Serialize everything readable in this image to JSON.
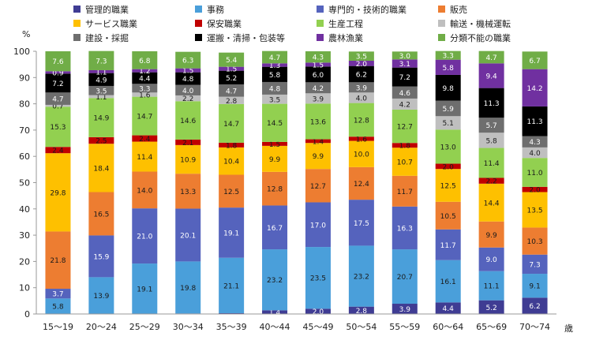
{
  "chart_data": {
    "type": "bar",
    "stacked": true,
    "ylabel": "%",
    "xunit": "歳",
    "ylim": [
      0,
      100
    ],
    "yticks": [
      0,
      10,
      20,
      30,
      40,
      50,
      60,
      70,
      80,
      90,
      100
    ],
    "grid": false,
    "legend_position": "top",
    "categories": [
      "15〜19",
      "20〜24",
      "25〜29",
      "30〜34",
      "35〜39",
      "40〜44",
      "45〜49",
      "50〜54",
      "55〜59",
      "60〜64",
      "65〜69",
      "70〜74"
    ],
    "series": [
      {
        "name": "管理的職業",
        "color": "#3f3c93",
        "label_color": "#ffffff",
        "values": [
          0.1,
          0.1,
          0.1,
          0.2,
          0.3,
          1.4,
          2.0,
          2.8,
          3.9,
          4.4,
          5.2,
          6.2
        ],
        "labels": [
          null,
          null,
          null,
          null,
          null,
          "1.4",
          "2.0",
          "2.8",
          "3.9",
          "4.4",
          "5.2",
          "6.2"
        ]
      },
      {
        "name": "事務",
        "color": "#4a9fda",
        "label_color": "#1a1a1a",
        "values": [
          5.8,
          13.9,
          19.1,
          19.8,
          21.1,
          23.2,
          23.5,
          23.2,
          20.7,
          16.1,
          11.1,
          9.1
        ],
        "labels": [
          "5.8",
          "13.9",
          "19.1",
          "19.8",
          "21.1",
          "23.2",
          "23.5",
          "23.2",
          "20.7",
          "16.1",
          "11.1",
          "9.1"
        ]
      },
      {
        "name": "専門的・技術的職業",
        "color": "#5563bd",
        "label_color": "#ffffff",
        "values": [
          3.7,
          15.9,
          21.0,
          20.1,
          19.1,
          16.7,
          17.0,
          17.5,
          16.3,
          11.7,
          9.0,
          7.3
        ],
        "labels": [
          "3.7",
          "15.9",
          "21.0",
          "20.1",
          "19.1",
          "16.7",
          "17.0",
          "17.5",
          "16.3",
          "11.7",
          "9.0",
          "7.3"
        ]
      },
      {
        "name": "販売",
        "color": "#ed7d31",
        "label_color": "#1a1a1a",
        "values": [
          21.8,
          16.5,
          14.0,
          13.3,
          12.5,
          12.8,
          12.7,
          12.4,
          11.7,
          10.5,
          9.9,
          10.3
        ],
        "labels": [
          "21.8",
          "16.5",
          "14.0",
          "13.3",
          "12.5",
          "12.8",
          "12.7",
          "12.4",
          "11.7",
          "10.5",
          "9.9",
          "10.3"
        ]
      },
      {
        "name": "サービス職業",
        "color": "#fec000",
        "label_color": "#1a1a1a",
        "values": [
          29.8,
          18.4,
          11.4,
          10.9,
          10.4,
          9.9,
          9.9,
          10.0,
          10.7,
          12.5,
          14.4,
          13.5
        ],
        "labels": [
          "29.8",
          "18.4",
          "11.4",
          "10.9",
          "10.4",
          "9.9",
          "9.9",
          "10.0",
          "10.7",
          "12.5",
          "14.4",
          "13.5"
        ]
      },
      {
        "name": "保安職業",
        "color": "#c00000",
        "label_color": "#1a1a1a",
        "values": [
          2.4,
          2.5,
          2.4,
          2.1,
          1.8,
          1.5,
          1.4,
          1.6,
          1.8,
          2.0,
          2.2,
          2.0
        ],
        "labels": [
          "2.4",
          "2.5",
          "2.4",
          "2.1",
          "1.8",
          "1.5",
          "1.4",
          "1.6",
          "1.8",
          "2.0",
          "2.2",
          "2.0"
        ]
      },
      {
        "name": "生産工程",
        "color": "#92d050",
        "label_color": "#1a1a1a",
        "values": [
          15.3,
          14.9,
          14.7,
          14.6,
          14.7,
          14.5,
          13.6,
          12.8,
          12.7,
          13.0,
          11.4,
          11.0
        ],
        "labels": [
          "15.3",
          "14.9",
          "14.7",
          "14.6",
          "14.7",
          "14.5",
          "13.6",
          "12.8",
          "12.7",
          "13.0",
          "11.4",
          "11.0"
        ]
      },
      {
        "name": "輸送・機械運転",
        "color": "#bfbfbf",
        "label_color": "#1a1a1a",
        "values": [
          0.7,
          1.1,
          1.6,
          2.2,
          2.8,
          3.5,
          3.9,
          4.0,
          4.2,
          5.1,
          5.8,
          4.0
        ],
        "labels": [
          "0.7",
          "1.1",
          "1.6",
          "2.2",
          "2.8",
          "3.5",
          "3.9",
          "4.0",
          "4.2",
          "5.1",
          "5.8",
          "4.0"
        ]
      },
      {
        "name": "建設・採掘",
        "color": "#6e6e6e",
        "label_color": "#ffffff",
        "values": [
          4.7,
          3.5,
          3.3,
          4.0,
          4.7,
          4.8,
          4.2,
          3.9,
          4.6,
          5.9,
          5.7,
          4.3
        ],
        "labels": [
          "4.7",
          "3.5",
          "3.3",
          "4.0",
          "4.7",
          "4.8",
          "4.2",
          "3.9",
          "4.6",
          "5.9",
          "5.7",
          "4.3"
        ]
      },
      {
        "name": "運搬・清掃・包装等",
        "color": "#000000",
        "label_color": "#ffffff",
        "values": [
          7.2,
          4.9,
          4.4,
          4.8,
          5.2,
          5.8,
          6.0,
          6.2,
          7.2,
          9.8,
          11.3,
          11.3
        ],
        "labels": [
          "7.2",
          "4.9",
          "4.4",
          "4.8",
          "5.2",
          "5.8",
          "6.0",
          "6.2",
          "7.2",
          "9.8",
          "11.3",
          "11.3"
        ]
      },
      {
        "name": "農林漁業",
        "color": "#7030a0",
        "label_color": "#ffffff",
        "values": [
          0.9,
          1.1,
          1.2,
          1.5,
          1.5,
          1.3,
          1.5,
          2.0,
          3.1,
          5.8,
          9.4,
          14.2
        ],
        "labels": [
          "0.9",
          "1.1",
          "1.2",
          "1.5",
          "1.5",
          "1.3",
          "1.5",
          "2.0",
          "3.1",
          "5.8",
          "9.4",
          "14.2"
        ]
      },
      {
        "name": "分類不能の職業",
        "color": "#70ad47",
        "label_color": "#ffffff",
        "values": [
          7.6,
          7.3,
          6.8,
          6.3,
          5.4,
          4.7,
          4.3,
          3.5,
          3.0,
          3.3,
          4.7,
          6.7
        ],
        "labels": [
          "7.6",
          "7.3",
          "6.8",
          "6.3",
          "5.4",
          "4.7",
          "4.3",
          "3.5",
          "3.0",
          "3.3",
          "4.7",
          "6.7"
        ]
      }
    ]
  }
}
